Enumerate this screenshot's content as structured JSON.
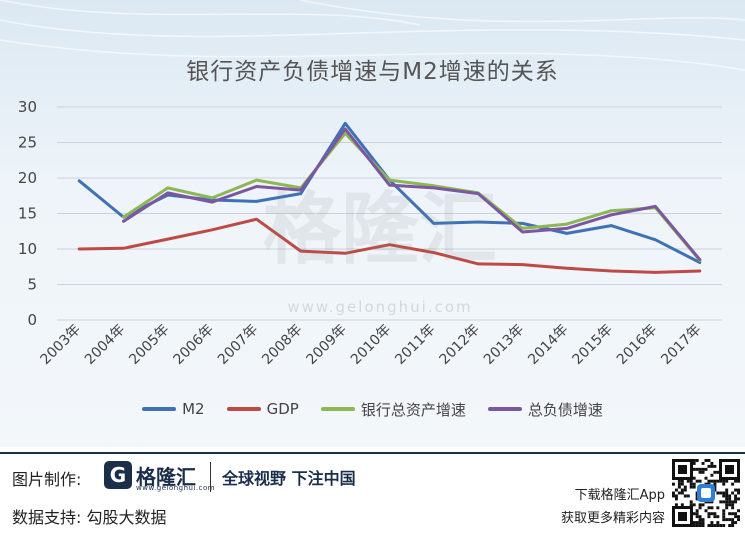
{
  "chart_data": {
    "type": "line",
    "title": "银行资产负债增速与M2增速的关系",
    "categories": [
      "2003年",
      "2004年",
      "2005年",
      "2006年",
      "2007年",
      "2008年",
      "2009年",
      "2010年",
      "2011年",
      "2012年",
      "2013年",
      "2014年",
      "2015年",
      "2016年",
      "2017年"
    ],
    "ylim": [
      0,
      30
    ],
    "yticks": [
      0,
      5,
      10,
      15,
      20,
      25,
      30
    ],
    "grid": true,
    "legend_position": "bottom",
    "series": [
      {
        "name": "M2",
        "color": "#3e72b5",
        "values": [
          19.6,
          14.5,
          17.6,
          16.9,
          16.7,
          17.8,
          27.7,
          19.7,
          13.6,
          13.8,
          13.6,
          12.2,
          13.3,
          11.3,
          8.1
        ]
      },
      {
        "name": "GDP",
        "color": "#bf4a45",
        "values": [
          10.0,
          10.1,
          11.4,
          12.7,
          14.2,
          9.7,
          9.4,
          10.6,
          9.5,
          7.9,
          7.8,
          7.3,
          6.9,
          6.7,
          6.9
        ]
      },
      {
        "name": "银行总资产增速",
        "color": "#8db654",
        "values": null,
        "values_full": [
          null,
          14.5,
          18.6,
          17.2,
          19.7,
          18.6,
          26.3,
          19.7,
          18.9,
          17.9,
          12.9,
          13.5,
          15.4,
          15.8,
          8.4
        ]
      },
      {
        "name": "总负债增速",
        "color": "#7c57a0",
        "values": null,
        "values_full": [
          null,
          13.9,
          17.9,
          16.6,
          18.8,
          18.3,
          26.9,
          19.0,
          18.6,
          17.8,
          12.4,
          12.9,
          14.8,
          16.0,
          8.5
        ]
      }
    ]
  },
  "watermark": {
    "brand": "格隆汇",
    "url": "www.gelonghui.com"
  },
  "footer": {
    "credit_label": "图片制作:",
    "logo_letter": "G",
    "logo_name": "格隆汇",
    "logo_url": "www.gelonghui.com",
    "slogan": "全球视野 下注中国",
    "data_support": "数据支持:  勾股大数据",
    "download_app": "下载格隆汇App",
    "more_info": "获取更多精彩内容"
  },
  "colors": {
    "brand": "#1b2f4b",
    "qr_badge": "#2f7fd6"
  }
}
